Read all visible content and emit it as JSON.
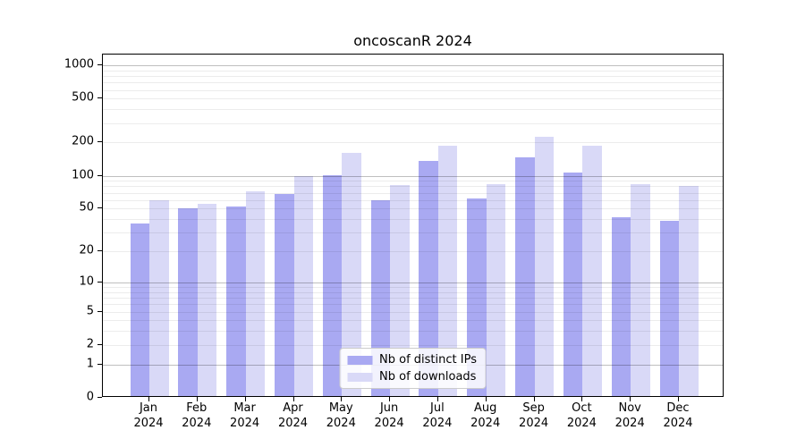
{
  "title": "oncoscanR 2024",
  "year_label": "2024",
  "legend": {
    "items": [
      {
        "label": "Nb of distinct IPs",
        "color": "#a9a9f2"
      },
      {
        "label": "Nb of downloads",
        "color": "#d9d9f7"
      }
    ]
  },
  "colors": {
    "ips_bar": "#a9a9f2",
    "downloads_bar": "#d9d9f7",
    "grid_major": "rgba(0,0,0,0.25)",
    "grid_minor": "rgba(0,0,0,0.075)",
    "axis": "#000000"
  },
  "chart_data": {
    "type": "bar",
    "title": "oncoscanR 2024",
    "categories": [
      "Jan 2024",
      "Feb 2024",
      "Mar 2024",
      "Apr 2024",
      "May 2024",
      "Jun 2024",
      "Jul 2024",
      "Aug 2024",
      "Sep 2024",
      "Oct 2024",
      "Nov 2024",
      "Dec 2024"
    ],
    "month_names": [
      "Jan",
      "Feb",
      "Mar",
      "Apr",
      "May",
      "Jun",
      "Jul",
      "Aug",
      "Sep",
      "Oct",
      "Nov",
      "Dec"
    ],
    "series": [
      {
        "name": "Nb of distinct IPs",
        "color": "#a9a9f2",
        "values": [
          35,
          48,
          50,
          65,
          98,
          57,
          131,
          60,
          142,
          102,
          40,
          37
        ]
      },
      {
        "name": "Nb of downloads",
        "color": "#d9d9f7",
        "values": [
          57,
          53,
          70,
          96,
          155,
          79,
          181,
          80,
          218,
          180,
          80,
          77
        ]
      }
    ],
    "xlabel": "",
    "ylabel": "",
    "yscale": "log10(value+1)",
    "ylim": [
      0,
      1250
    ],
    "yticks": [
      0,
      1,
      2,
      5,
      10,
      20,
      50,
      100,
      200,
      500,
      1000
    ],
    "minor_grid_values": [
      2,
      3,
      4,
      5,
      6,
      7,
      8,
      9,
      20,
      30,
      40,
      50,
      60,
      70,
      80,
      90,
      200,
      300,
      400,
      500,
      600,
      700,
      800,
      900
    ],
    "major_grid_values": [
      1,
      10,
      100,
      1000
    ],
    "grid": true,
    "legend_position": "lower center"
  }
}
